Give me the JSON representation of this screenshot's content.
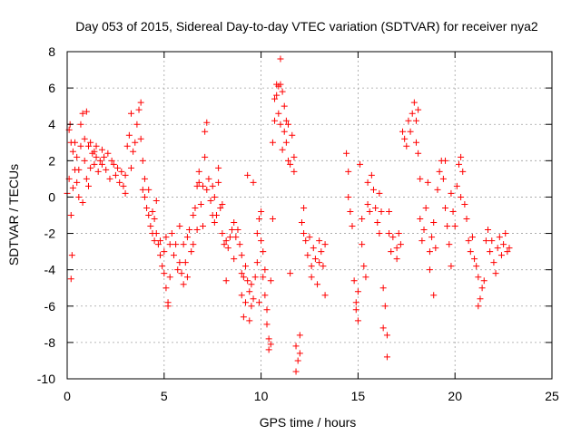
{
  "chart_data": {
    "type": "scatter",
    "title": "Day 053 of 2015, Sidereal Day-to-day VTEC variation (SDTVAR) for receiver nya2",
    "xlabel": "GPS time / hours",
    "ylabel": "SDTVAR / TECUs",
    "xlim": [
      0,
      25
    ],
    "ylim": [
      -10,
      8
    ],
    "xticks": [
      0,
      5,
      10,
      15,
      20,
      25
    ],
    "yticks": [
      -10,
      -8,
      -6,
      -4,
      -2,
      0,
      2,
      4,
      6,
      8
    ],
    "grid": true,
    "marker": "+",
    "series": [
      {
        "name": "SDTVAR",
        "color": "#ff0000",
        "points": [
          [
            0.0,
            0.2
          ],
          [
            0.1,
            1.0
          ],
          [
            0.1,
            3.7
          ],
          [
            0.15,
            4.0
          ],
          [
            0.2,
            3.0
          ],
          [
            0.2,
            -1.0
          ],
          [
            0.25,
            -3.2
          ],
          [
            0.2,
            -4.5
          ],
          [
            0.3,
            0.5
          ],
          [
            0.3,
            2.5
          ],
          [
            0.4,
            1.5
          ],
          [
            0.4,
            3.0
          ],
          [
            0.5,
            0.8
          ],
          [
            0.5,
            2.2
          ],
          [
            0.6,
            0.0
          ],
          [
            0.6,
            1.5
          ],
          [
            0.7,
            2.8
          ],
          [
            0.7,
            4.0
          ],
          [
            0.8,
            4.6
          ],
          [
            0.8,
            -0.3
          ],
          [
            0.9,
            2.0
          ],
          [
            0.9,
            3.2
          ],
          [
            1.0,
            4.7
          ],
          [
            1.0,
            1.0
          ],
          [
            1.1,
            2.8
          ],
          [
            1.1,
            0.6
          ],
          [
            1.2,
            1.6
          ],
          [
            1.2,
            3.0
          ],
          [
            1.3,
            2.4
          ],
          [
            1.4,
            1.8
          ],
          [
            1.4,
            2.5
          ],
          [
            1.5,
            2.2
          ],
          [
            1.5,
            2.8
          ],
          [
            1.6,
            1.4
          ],
          [
            1.7,
            2.0
          ],
          [
            1.8,
            2.6
          ],
          [
            1.8,
            1.8
          ],
          [
            1.9,
            2.2
          ],
          [
            2.0,
            1.5
          ],
          [
            2.1,
            2.4
          ],
          [
            2.2,
            1.0
          ],
          [
            2.3,
            2.0
          ],
          [
            2.4,
            1.8
          ],
          [
            2.5,
            1.2
          ],
          [
            2.6,
            1.6
          ],
          [
            2.7,
            0.8
          ],
          [
            2.8,
            1.4
          ],
          [
            2.9,
            0.6
          ],
          [
            3.0,
            1.2
          ],
          [
            3.0,
            0.2
          ],
          [
            3.1,
            2.8
          ],
          [
            3.2,
            3.4
          ],
          [
            3.3,
            4.6
          ],
          [
            3.3,
            1.6
          ],
          [
            3.4,
            2.5
          ],
          [
            3.5,
            3.0
          ],
          [
            3.6,
            4.0
          ],
          [
            3.7,
            4.8
          ],
          [
            3.8,
            5.2
          ],
          [
            3.8,
            3.2
          ],
          [
            3.9,
            2.0
          ],
          [
            3.9,
            0.4
          ],
          [
            4.0,
            1.0
          ],
          [
            4.0,
            0.0
          ],
          [
            4.1,
            -0.6
          ],
          [
            4.2,
            -1.0
          ],
          [
            4.2,
            0.4
          ],
          [
            4.3,
            -1.6
          ],
          [
            4.4,
            -0.8
          ],
          [
            4.4,
            -2.0
          ],
          [
            4.5,
            -1.2
          ],
          [
            4.5,
            -2.4
          ],
          [
            4.6,
            -2.0
          ],
          [
            4.6,
            -0.2
          ],
          [
            4.7,
            -2.6
          ],
          [
            4.8,
            -3.2
          ],
          [
            4.8,
            -2.4
          ],
          [
            4.9,
            -3.8
          ],
          [
            5.0,
            -4.2
          ],
          [
            5.0,
            -3.0
          ],
          [
            5.1,
            -5.0
          ],
          [
            5.1,
            -2.2
          ],
          [
            5.2,
            -5.8
          ],
          [
            5.2,
            -6.0
          ],
          [
            5.3,
            -4.4
          ],
          [
            5.3,
            -2.6
          ],
          [
            5.4,
            -2.0
          ],
          [
            5.5,
            -3.2
          ],
          [
            5.6,
            -2.6
          ],
          [
            5.7,
            -4.0
          ],
          [
            5.8,
            -3.6
          ],
          [
            5.8,
            -1.6
          ],
          [
            5.9,
            -4.2
          ],
          [
            6.0,
            -4.8
          ],
          [
            6.0,
            -2.6
          ],
          [
            6.1,
            -3.6
          ],
          [
            6.2,
            -2.2
          ],
          [
            6.2,
            -4.4
          ],
          [
            6.3,
            -1.8
          ],
          [
            6.4,
            -3.0
          ],
          [
            6.5,
            -2.6
          ],
          [
            6.5,
            -1.0
          ],
          [
            6.6,
            -0.6
          ],
          [
            6.7,
            0.6
          ],
          [
            6.7,
            -1.8
          ],
          [
            6.8,
            0.8
          ],
          [
            6.8,
            1.4
          ],
          [
            6.9,
            -0.4
          ],
          [
            7.0,
            0.6
          ],
          [
            7.0,
            -1.6
          ],
          [
            7.1,
            2.2
          ],
          [
            7.1,
            3.6
          ],
          [
            7.2,
            4.1
          ],
          [
            7.2,
            0.4
          ],
          [
            7.3,
            1.0
          ],
          [
            7.4,
            -0.2
          ],
          [
            7.5,
            -1.0
          ],
          [
            7.5,
            0.6
          ],
          [
            7.6,
            -1.4
          ],
          [
            7.6,
            0.0
          ],
          [
            7.7,
            -1.0
          ],
          [
            7.8,
            0.8
          ],
          [
            7.8,
            1.6
          ],
          [
            7.9,
            -0.6
          ],
          [
            8.0,
            -2.0
          ],
          [
            8.0,
            -0.4
          ],
          [
            8.1,
            -2.6
          ],
          [
            8.2,
            -2.4
          ],
          [
            8.2,
            -4.6
          ],
          [
            8.3,
            -2.8
          ],
          [
            8.4,
            -2.2
          ],
          [
            8.5,
            -1.8
          ],
          [
            8.6,
            -1.4
          ],
          [
            8.6,
            -3.4
          ],
          [
            8.7,
            -2.2
          ],
          [
            8.8,
            -1.8
          ],
          [
            8.9,
            -2.6
          ],
          [
            9.0,
            -3.2
          ],
          [
            9.0,
            -4.2
          ],
          [
            9.0,
            -5.4
          ],
          [
            9.1,
            -6.6
          ],
          [
            9.1,
            -4.4
          ],
          [
            9.2,
            -5.8
          ],
          [
            9.2,
            -3.8
          ],
          [
            9.3,
            1.2
          ],
          [
            9.3,
            -4.6
          ],
          [
            9.4,
            -5.2
          ],
          [
            9.4,
            -6.8
          ],
          [
            9.5,
            -6.0
          ],
          [
            9.5,
            -4.8
          ],
          [
            9.6,
            -5.6
          ],
          [
            9.6,
            0.8
          ],
          [
            9.7,
            -4.4
          ],
          [
            9.8,
            -3.6
          ],
          [
            9.8,
            -2.0
          ],
          [
            9.9,
            -5.8
          ],
          [
            9.9,
            -1.2
          ],
          [
            10.0,
            -0.8
          ],
          [
            10.0,
            -2.4
          ],
          [
            10.1,
            -3.0
          ],
          [
            10.1,
            -4.4
          ],
          [
            10.2,
            -4.0
          ],
          [
            10.2,
            -5.4
          ],
          [
            10.3,
            -6.2
          ],
          [
            10.3,
            -7.0
          ],
          [
            10.4,
            -7.8
          ],
          [
            10.4,
            -8.4
          ],
          [
            10.5,
            -8.1
          ],
          [
            10.5,
            -4.6
          ],
          [
            10.6,
            -1.2
          ],
          [
            10.6,
            3.0
          ],
          [
            10.7,
            4.2
          ],
          [
            10.7,
            5.4
          ],
          [
            10.8,
            6.2
          ],
          [
            10.8,
            5.6
          ],
          [
            10.9,
            6.1
          ],
          [
            10.9,
            4.6
          ],
          [
            11.0,
            6.2
          ],
          [
            11.0,
            4.0
          ],
          [
            11.0,
            7.6
          ],
          [
            11.1,
            5.8
          ],
          [
            11.1,
            2.6
          ],
          [
            11.2,
            3.6
          ],
          [
            11.2,
            5.0
          ],
          [
            11.3,
            4.2
          ],
          [
            11.3,
            3.0
          ],
          [
            11.4,
            2.0
          ],
          [
            11.4,
            4.0
          ],
          [
            11.5,
            1.8
          ],
          [
            11.5,
            -4.2
          ],
          [
            11.6,
            3.4
          ],
          [
            11.7,
            2.2
          ],
          [
            11.7,
            1.4
          ],
          [
            11.8,
            -8.2
          ],
          [
            11.8,
            -9.6
          ],
          [
            11.9,
            -9.0
          ],
          [
            12.0,
            -8.6
          ],
          [
            12.0,
            -7.6
          ],
          [
            12.1,
            -1.4
          ],
          [
            12.2,
            -0.6
          ],
          [
            12.2,
            -2.0
          ],
          [
            12.3,
            -2.4
          ],
          [
            12.4,
            -3.2
          ],
          [
            12.5,
            -2.2
          ],
          [
            12.6,
            -3.8
          ],
          [
            12.6,
            -4.4
          ],
          [
            12.7,
            -2.8
          ],
          [
            12.8,
            -3.4
          ],
          [
            12.9,
            -4.8
          ],
          [
            13.0,
            -3.6
          ],
          [
            13.0,
            -2.4
          ],
          [
            13.1,
            -3.0
          ],
          [
            13.2,
            -3.8
          ],
          [
            13.3,
            -2.6
          ],
          [
            13.3,
            -5.4
          ],
          [
            14.4,
            2.4
          ],
          [
            14.5,
            1.4
          ],
          [
            14.5,
            0.0
          ],
          [
            14.6,
            -0.8
          ],
          [
            14.7,
            -1.6
          ],
          [
            14.8,
            -4.6
          ],
          [
            14.9,
            -5.8
          ],
          [
            14.9,
            -6.2
          ],
          [
            15.0,
            -6.8
          ],
          [
            15.0,
            -5.2
          ],
          [
            15.1,
            1.8
          ],
          [
            15.2,
            -2.6
          ],
          [
            15.2,
            -1.2
          ],
          [
            15.3,
            -3.8
          ],
          [
            15.4,
            -4.4
          ],
          [
            15.5,
            -0.4
          ],
          [
            15.5,
            0.8
          ],
          [
            15.6,
            -0.8
          ],
          [
            15.7,
            1.2
          ],
          [
            15.8,
            0.4
          ],
          [
            15.9,
            -0.6
          ],
          [
            16.0,
            -1.4
          ],
          [
            16.1,
            0.2
          ],
          [
            16.1,
            -2.0
          ],
          [
            16.2,
            -0.8
          ],
          [
            16.3,
            -5.0
          ],
          [
            16.3,
            -7.2
          ],
          [
            16.4,
            -6.0
          ],
          [
            16.5,
            -7.6
          ],
          [
            16.5,
            -8.8
          ],
          [
            16.6,
            -0.8
          ],
          [
            16.6,
            -2.0
          ],
          [
            16.7,
            -3.0
          ],
          [
            16.8,
            -2.2
          ],
          [
            17.0,
            -3.4
          ],
          [
            17.0,
            -2.8
          ],
          [
            17.1,
            -2.0
          ],
          [
            17.2,
            -2.6
          ],
          [
            17.3,
            3.6
          ],
          [
            17.4,
            3.2
          ],
          [
            17.5,
            2.8
          ],
          [
            17.6,
            4.2
          ],
          [
            17.7,
            3.6
          ],
          [
            17.8,
            4.6
          ],
          [
            17.9,
            5.2
          ],
          [
            18.0,
            4.2
          ],
          [
            18.0,
            3.0
          ],
          [
            18.1,
            2.4
          ],
          [
            18.1,
            4.8
          ],
          [
            18.2,
            1.0
          ],
          [
            18.2,
            -1.2
          ],
          [
            18.3,
            -2.4
          ],
          [
            18.4,
            -1.8
          ],
          [
            18.5,
            -0.6
          ],
          [
            18.6,
            0.8
          ],
          [
            18.7,
            -3.0
          ],
          [
            18.7,
            -4.0
          ],
          [
            18.8,
            -2.2
          ],
          [
            18.9,
            -1.4
          ],
          [
            18.9,
            -5.4
          ],
          [
            19.0,
            -2.8
          ],
          [
            19.1,
            0.4
          ],
          [
            19.2,
            1.4
          ],
          [
            19.3,
            2.0
          ],
          [
            19.4,
            1.0
          ],
          [
            19.5,
            2.0
          ],
          [
            19.5,
            -0.6
          ],
          [
            19.6,
            -1.6
          ],
          [
            19.7,
            -2.6
          ],
          [
            19.8,
            -3.8
          ],
          [
            19.8,
            0.2
          ],
          [
            19.9,
            -0.8
          ],
          [
            20.0,
            -1.6
          ],
          [
            20.1,
            0.6
          ],
          [
            20.2,
            1.8
          ],
          [
            20.3,
            2.2
          ],
          [
            20.3,
            0.0
          ],
          [
            20.4,
            1.4
          ],
          [
            20.5,
            -0.4
          ],
          [
            20.6,
            -1.2
          ],
          [
            20.7,
            -2.4
          ],
          [
            20.8,
            -3.0
          ],
          [
            20.9,
            -2.2
          ],
          [
            21.0,
            -3.4
          ],
          [
            21.1,
            -3.8
          ],
          [
            21.2,
            -4.4
          ],
          [
            21.2,
            -6.0
          ],
          [
            21.3,
            -5.6
          ],
          [
            21.4,
            -5.0
          ],
          [
            21.5,
            -4.6
          ],
          [
            21.6,
            -2.4
          ],
          [
            21.7,
            -1.8
          ],
          [
            21.8,
            -3.0
          ],
          [
            21.9,
            -2.4
          ],
          [
            22.0,
            -3.6
          ],
          [
            22.1,
            -4.2
          ],
          [
            22.2,
            -2.8
          ],
          [
            22.3,
            -2.2
          ],
          [
            22.4,
            -3.2
          ],
          [
            22.5,
            -2.6
          ],
          [
            22.6,
            -2.0
          ],
          [
            22.7,
            -3.0
          ],
          [
            22.8,
            -2.8
          ]
        ]
      }
    ]
  }
}
